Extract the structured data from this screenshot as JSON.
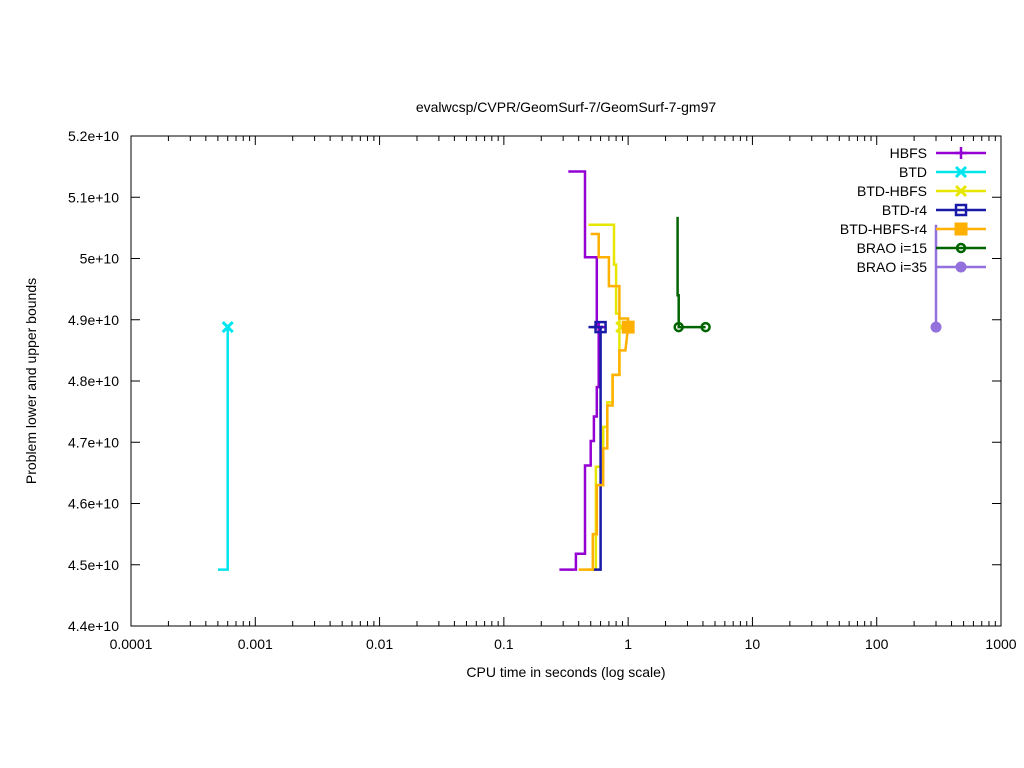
{
  "chart_data": {
    "type": "line",
    "title": "evalwcsp/CVPR/GeomSurf-7/GeomSurf-7-gm97",
    "xlabel": "CPU time in seconds (log scale)",
    "ylabel": "Problem lower and upper bounds",
    "xscale": "log",
    "xlim": [
      0.0001,
      1000
    ],
    "ylim": [
      44000000000,
      52000000000
    ],
    "grid": false,
    "legend_position": "top-right",
    "x_ticks": [
      {
        "value": 0.0001,
        "label": "0.0001"
      },
      {
        "value": 0.001,
        "label": "0.001"
      },
      {
        "value": 0.01,
        "label": "0.01"
      },
      {
        "value": 0.1,
        "label": "0.1"
      },
      {
        "value": 1,
        "label": "1"
      },
      {
        "value": 10,
        "label": "10"
      },
      {
        "value": 100,
        "label": "100"
      },
      {
        "value": 1000,
        "label": "1000"
      }
    ],
    "y_ticks": [
      {
        "value": 44000000000,
        "label": "4.4e+10"
      },
      {
        "value": 45000000000,
        "label": "4.5e+10"
      },
      {
        "value": 46000000000,
        "label": "4.6e+10"
      },
      {
        "value": 47000000000,
        "label": "4.7e+10"
      },
      {
        "value": 48000000000,
        "label": "4.8e+10"
      },
      {
        "value": 49000000000,
        "label": "4.9e+10"
      },
      {
        "value": 50000000000,
        "label": "5e+10"
      },
      {
        "value": 51000000000,
        "label": "5.1e+10"
      },
      {
        "value": 52000000000,
        "label": "5.2e+10"
      }
    ],
    "series": [
      {
        "name": "HBFS",
        "color": "#9400d3",
        "marker": "plus",
        "lines": [
          [
            [
              0.33,
              51420000000
            ],
            [
              0.45,
              51420000000
            ],
            [
              0.45,
              50020000000
            ],
            [
              0.56,
              50020000000
            ],
            [
              0.56,
              48880000000
            ],
            [
              0.63,
              48880000000
            ]
          ],
          [
            [
              0.28,
              44920000000
            ],
            [
              0.38,
              44920000000
            ],
            [
              0.38,
              45180000000
            ],
            [
              0.45,
              45180000000
            ],
            [
              0.45,
              46620000000
            ],
            [
              0.5,
              46620000000
            ],
            [
              0.5,
              47020000000
            ],
            [
              0.53,
              47020000000
            ],
            [
              0.53,
              47420000000
            ],
            [
              0.56,
              47420000000
            ],
            [
              0.56,
              47900000000
            ],
            [
              0.58,
              47900000000
            ],
            [
              0.58,
              48880000000
            ],
            [
              0.63,
              48880000000
            ]
          ]
        ],
        "markers": [
          [
            0.58,
            48880000000
          ]
        ]
      },
      {
        "name": "BTD",
        "color": "#00e5ee",
        "marker": "x",
        "lines": [
          [
            [
              0.0005,
              44920000000
            ],
            [
              0.0006,
              44920000000
            ],
            [
              0.0006,
              48880000000
            ]
          ]
        ],
        "markers": [
          [
            0.0006,
            48880000000
          ]
        ]
      },
      {
        "name": "BTD-HBFS",
        "color": "#e6e600",
        "marker": "x",
        "lines": [
          [
            [
              0.48,
              50550000000
            ],
            [
              0.77,
              50550000000
            ],
            [
              0.77,
              49900000000
            ],
            [
              0.8,
              49900000000
            ],
            [
              0.8,
              49100000000
            ],
            [
              0.85,
              49100000000
            ],
            [
              0.85,
              48880000000
            ]
          ],
          [
            [
              0.45,
              44920000000
            ],
            [
              0.55,
              44920000000
            ],
            [
              0.55,
              46600000000
            ],
            [
              0.63,
              46600000000
            ],
            [
              0.63,
              47250000000
            ],
            [
              0.68,
              47250000000
            ],
            [
              0.68,
              47650000000
            ],
            [
              0.75,
              47650000000
            ],
            [
              0.75,
              48100000000
            ],
            [
              0.85,
              48100000000
            ],
            [
              0.85,
              48880000000
            ]
          ]
        ],
        "markers": [
          [
            0.88,
            48880000000
          ]
        ]
      },
      {
        "name": "BTD-r4",
        "color": "#1a1aa8",
        "marker": "square-open",
        "lines": [
          [
            [
              0.48,
              48880000000
            ],
            [
              0.63,
              48880000000
            ]
          ],
          [
            [
              0.52,
              44920000000
            ],
            [
              0.6,
              44920000000
            ],
            [
              0.6,
              48880000000
            ]
          ]
        ],
        "markers": [
          [
            0.6,
            48880000000
          ]
        ]
      },
      {
        "name": "BTD-HBFS-r4",
        "color": "#ffb000",
        "marker": "square-filled",
        "lines": [
          [
            [
              0.5,
              50400000000
            ],
            [
              0.58,
              50400000000
            ],
            [
              0.58,
              50020000000
            ],
            [
              0.7,
              50020000000
            ],
            [
              0.7,
              49550000000
            ],
            [
              0.85,
              49550000000
            ],
            [
              0.85,
              49020000000
            ],
            [
              1.0,
              49020000000
            ],
            [
              1.0,
              48880000000
            ]
          ],
          [
            [
              0.4,
              44920000000
            ],
            [
              0.52,
              44920000000
            ],
            [
              0.52,
              45500000000
            ],
            [
              0.56,
              45500000000
            ],
            [
              0.56,
              46300000000
            ],
            [
              0.63,
              46300000000
            ],
            [
              0.63,
              46900000000
            ],
            [
              0.68,
              46900000000
            ],
            [
              0.68,
              47600000000
            ],
            [
              0.75,
              47600000000
            ],
            [
              0.75,
              48100000000
            ],
            [
              0.85,
              48100000000
            ],
            [
              0.85,
              48500000000
            ],
            [
              0.95,
              48500000000
            ],
            [
              1.0,
              48880000000
            ]
          ]
        ],
        "markers": [
          [
            1.0,
            48880000000
          ]
        ]
      },
      {
        "name": "BRAO i=15",
        "color": "#006400",
        "marker": "circle-open",
        "lines": [
          [
            [
              2.5,
              50680000000
            ],
            [
              2.5,
              49400000000
            ],
            [
              2.55,
              49400000000
            ],
            [
              2.55,
              48880000000
            ],
            [
              4.2,
              48880000000
            ]
          ]
        ],
        "markers": [
          [
            2.55,
            48880000000
          ],
          [
            4.2,
            48880000000
          ]
        ]
      },
      {
        "name": "BRAO i=35",
        "color": "#9370db",
        "marker": "circle-filled",
        "lines": [
          [
            [
              300,
              50550000000
            ],
            [
              300,
              48880000000
            ]
          ]
        ],
        "markers": [
          [
            300,
            48880000000
          ]
        ]
      }
    ]
  }
}
